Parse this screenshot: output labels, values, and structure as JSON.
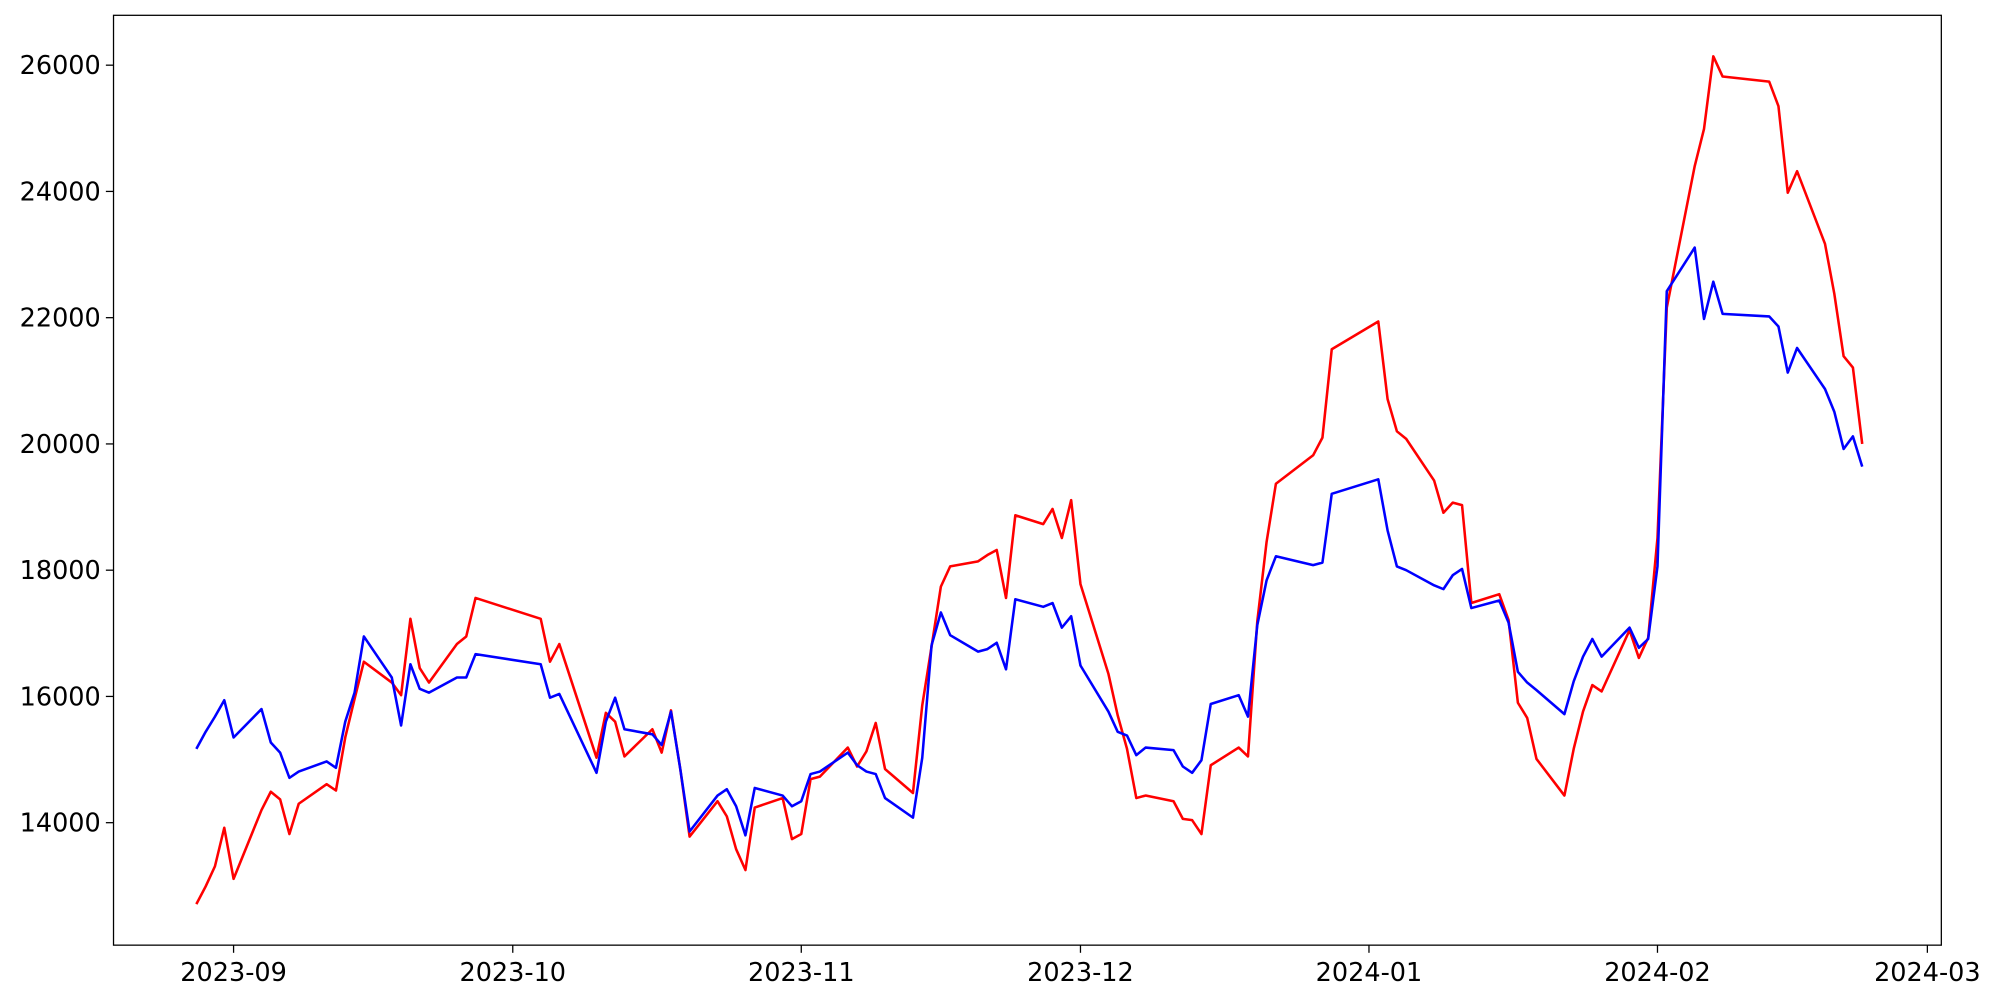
{
  "chart_data": {
    "type": "line",
    "x": [
      19597,
      19598,
      19599,
      19600,
      19601,
      19604,
      19605,
      19606,
      19607,
      19608,
      19611,
      19612,
      19613,
      19614,
      19615,
      19618,
      19619,
      19620,
      19621,
      19622,
      19625,
      19626,
      19627,
      19634,
      19635,
      19636,
      19640,
      19641,
      19642,
      19643,
      19646,
      19647,
      19648,
      19649,
      19650,
      19653,
      19654,
      19655,
      19656,
      19657,
      19660,
      19661,
      19662,
      19663,
      19664,
      19667,
      19668,
      19669,
      19670,
      19671,
      19674,
      19675,
      19676,
      19677,
      19678,
      19681,
      19682,
      19683,
      19684,
      19685,
      19688,
      19689,
      19690,
      19691,
      19692,
      19695,
      19696,
      19697,
      19698,
      19699,
      19702,
      19703,
      19704,
      19705,
      19706,
      19709,
      19710,
      19711,
      19712,
      19713,
      19717,
      19718,
      19719,
      19724,
      19725,
      19726,
      19727,
      19730,
      19731,
      19732,
      19733,
      19734,
      19737,
      19738,
      19739,
      19740,
      19741,
      19744,
      19745,
      19746,
      19747,
      19748,
      19751,
      19752,
      19753,
      19754,
      19755,
      19758,
      19759,
      19760,
      19761,
      19766,
      19767,
      19768,
      19769,
      19772,
      19773,
      19774,
      19775,
      19776
    ],
    "series": [
      {
        "color": "red",
        "values": [
          12710,
          12990,
          13310,
          13920,
          13110,
          14200,
          14490,
          14370,
          13820,
          14300,
          14610,
          14510,
          15350,
          15960,
          16550,
          16220,
          16020,
          17230,
          16450,
          16220,
          16830,
          16950,
          17560,
          17230,
          16550,
          16830,
          15030,
          15740,
          15600,
          15050,
          15480,
          15110,
          15780,
          14850,
          13780,
          14340,
          14100,
          13580,
          13250,
          14240,
          14390,
          13740,
          13820,
          14690,
          14730,
          15190,
          14890,
          15130,
          15580,
          14850,
          14470,
          15860,
          16790,
          17740,
          18060,
          18140,
          18240,
          18320,
          17560,
          18870,
          18730,
          18970,
          18510,
          19110,
          17780,
          16360,
          15700,
          15170,
          14390,
          14430,
          14340,
          14060,
          14040,
          13820,
          14910,
          15190,
          15050,
          17190,
          18450,
          19370,
          19820,
          20100,
          21500,
          21940,
          20710,
          20200,
          20080,
          19420,
          18910,
          19070,
          19030,
          17480,
          17620,
          17210,
          15900,
          15660,
          15010,
          14430,
          15170,
          15760,
          16180,
          16080,
          17050,
          16610,
          16930,
          18510,
          22160,
          24400,
          24990,
          26140,
          25820,
          25740,
          25350,
          23980,
          24320,
          23170,
          22380,
          21390,
          21210,
          20000
        ]
      },
      {
        "color": "blue",
        "values": [
          15170,
          15440,
          15680,
          15940,
          15350,
          15800,
          15270,
          15110,
          14710,
          14810,
          14970,
          14870,
          15600,
          16060,
          16950,
          16300,
          15540,
          16510,
          16120,
          16060,
          16300,
          16300,
          16670,
          16510,
          15980,
          16040,
          14790,
          15600,
          15980,
          15480,
          15400,
          15230,
          15760,
          14850,
          13860,
          14430,
          14530,
          14260,
          13800,
          14550,
          14430,
          14260,
          14340,
          14770,
          14810,
          15110,
          14910,
          14810,
          14770,
          14390,
          14080,
          15030,
          16810,
          17330,
          16970,
          16710,
          16750,
          16850,
          16430,
          17540,
          17420,
          17480,
          17090,
          17270,
          16490,
          15760,
          15440,
          15380,
          15070,
          15190,
          15150,
          14890,
          14790,
          14990,
          15880,
          16020,
          15680,
          17130,
          17840,
          18220,
          18080,
          18120,
          19210,
          19440,
          18630,
          18060,
          18000,
          17760,
          17700,
          17920,
          18020,
          17400,
          17520,
          17170,
          16390,
          16220,
          16100,
          15720,
          16240,
          16630,
          16910,
          16630,
          17090,
          16770,
          16910,
          18060,
          22420,
          23110,
          21980,
          22570,
          22060,
          22020,
          21860,
          21130,
          21520,
          20870,
          20510,
          19920,
          20120,
          19640
        ]
      }
    ],
    "xlim": [
      19588.1,
      19784.5
    ],
    "xticks": [
      {
        "value": 19601,
        "label": "2023-09"
      },
      {
        "value": 19631,
        "label": "2023-10"
      },
      {
        "value": 19662,
        "label": "2023-11"
      },
      {
        "value": 19692,
        "label": "2023-12"
      },
      {
        "value": 19723,
        "label": "2024-01"
      },
      {
        "value": 19754,
        "label": "2024-02"
      },
      {
        "value": 19783,
        "label": "2024-03"
      }
    ],
    "ylim": [
      12060,
      26790
    ],
    "yticks": [
      14000,
      16000,
      18000,
      20000,
      22000,
      24000,
      26000
    ],
    "grid": false
  }
}
